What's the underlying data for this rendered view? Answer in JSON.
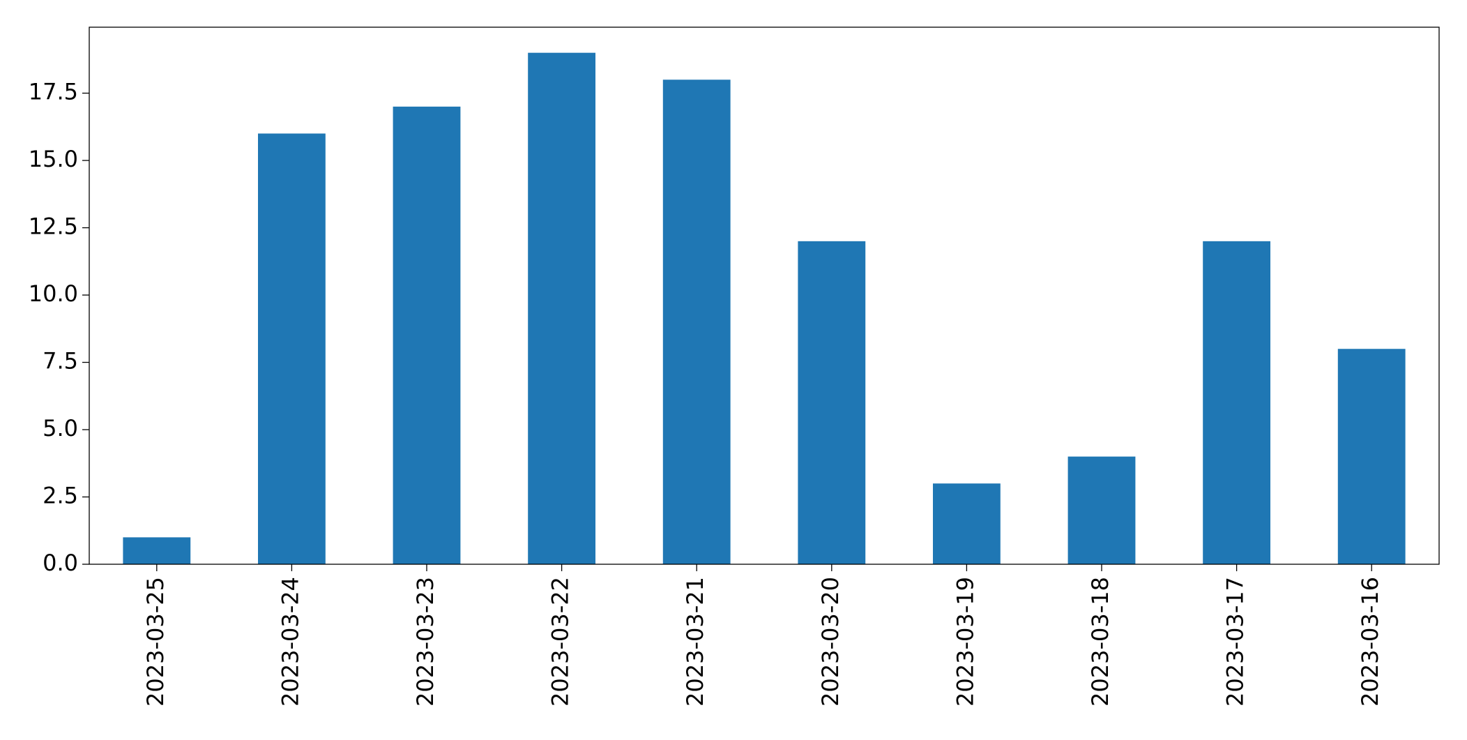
{
  "chart_data": {
    "type": "bar",
    "categories": [
      "2023-03-25",
      "2023-03-24",
      "2023-03-23",
      "2023-03-22",
      "2023-03-21",
      "2023-03-20",
      "2023-03-19",
      "2023-03-18",
      "2023-03-17",
      "2023-03-16"
    ],
    "values": [
      1,
      16,
      17,
      19,
      18,
      12,
      3,
      4,
      12,
      8
    ],
    "color": "#1f77b4",
    "ylim": [
      0,
      19.95
    ],
    "yticks": [
      {
        "value": 0,
        "label": "0.0"
      },
      2.5,
      {
        "value": 5,
        "label": "5.0"
      },
      7.5,
      {
        "value": 10,
        "label": "10.0"
      },
      12.5,
      {
        "value": 15,
        "label": "15.0"
      },
      17.5
    ],
    "grid": false
  }
}
